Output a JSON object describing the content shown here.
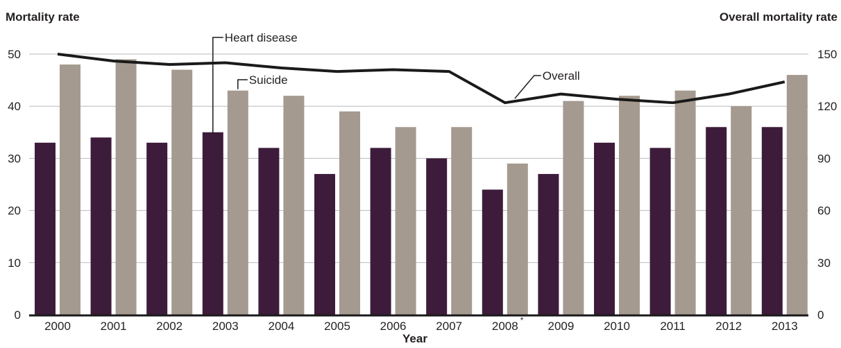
{
  "chart_data": {
    "type": "bar",
    "title": "",
    "xlabel": "Year",
    "ylabel": "Mortality rate",
    "y2label": "Overall mortality rate",
    "categories": [
      "2000",
      "2001",
      "2002",
      "2003",
      "2004",
      "2005",
      "2006",
      "2007",
      "2008",
      "2009",
      "2010",
      "2011",
      "2012",
      "2013"
    ],
    "category_marks": {
      "2008": "*"
    },
    "ylim": [
      0,
      50
    ],
    "y_ticks": [
      0,
      10,
      20,
      30,
      40,
      50
    ],
    "y2lim": [
      0,
      150
    ],
    "y2_ticks": [
      0,
      30,
      60,
      90,
      120,
      150
    ],
    "grid": true,
    "series": [
      {
        "name": "Heart disease",
        "type": "bar",
        "axis": "left",
        "color": "#3d1c3b",
        "values": [
          33,
          34,
          33,
          35,
          32,
          27,
          32,
          30,
          24,
          27,
          33,
          32,
          36,
          36
        ]
      },
      {
        "name": "Suicide",
        "type": "bar",
        "axis": "left",
        "color": "#a59a8f",
        "values": [
          48,
          49,
          47,
          43,
          42,
          39,
          36,
          36,
          29,
          41,
          42,
          43,
          40,
          46
        ]
      },
      {
        "name": "Overall",
        "type": "line",
        "axis": "right",
        "color": "#1a1a1a",
        "values": [
          150,
          146,
          144,
          145,
          142,
          140,
          141,
          140,
          122,
          127,
          124,
          122,
          127,
          134
        ]
      }
    ]
  }
}
